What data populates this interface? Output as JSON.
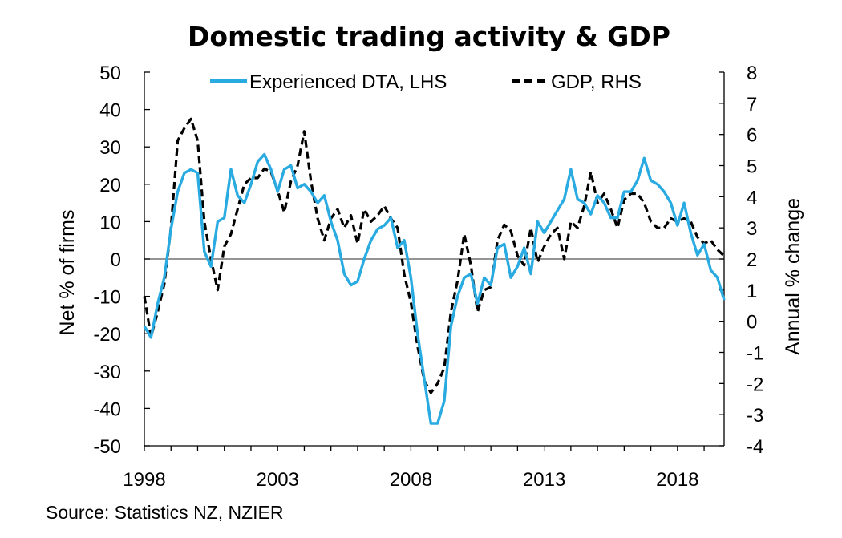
{
  "chart_data": {
    "type": "line",
    "title": "Domestic trading activity & GDP",
    "ylabel_left": "Net % of firms",
    "ylabel_right": "Annual % change",
    "source": "Source: Statistics NZ, NZIER",
    "left_axis": {
      "range": [
        -50,
        50
      ],
      "ticks": [
        "50",
        "40",
        "30",
        "20",
        "10",
        "0",
        "-10",
        "-20",
        "-30",
        "-40",
        "-50"
      ]
    },
    "right_axis": {
      "range": [
        -4,
        8
      ],
      "ticks": [
        "8",
        "7",
        "6",
        "5",
        "4",
        "3",
        "2",
        "1",
        "0",
        "-1",
        "-2",
        "-3",
        "-4"
      ]
    },
    "x_axis": {
      "range": [
        1998,
        2019.75
      ],
      "ticks": [
        "1998",
        "2003",
        "2008",
        "2013",
        "2018"
      ]
    },
    "legend": {
      "position": "top",
      "entries": [
        "Experienced DTA, LHS",
        "GDP, RHS"
      ]
    },
    "colors": {
      "dta": "#29abe2",
      "gdp": "#000000",
      "axis": "#000000",
      "zero": "#555555"
    },
    "series": [
      {
        "name": "Experienced DTA, LHS",
        "axis": "left",
        "style": "solid",
        "x": [
          1998,
          1998.25,
          1998.5,
          1998.75,
          1999,
          1999.25,
          1999.5,
          1999.75,
          2000,
          2000.25,
          2000.5,
          2000.75,
          2001,
          2001.25,
          2001.5,
          2001.75,
          2002,
          2002.25,
          2002.5,
          2002.75,
          2003,
          2003.25,
          2003.5,
          2003.75,
          2004,
          2004.25,
          2004.5,
          2004.75,
          2005,
          2005.25,
          2005.5,
          2005.75,
          2006,
          2006.25,
          2006.5,
          2006.75,
          2007,
          2007.25,
          2007.5,
          2007.75,
          2008,
          2008.25,
          2008.5,
          2008.75,
          2009,
          2009.25,
          2009.5,
          2009.75,
          2010,
          2010.25,
          2010.5,
          2010.75,
          2011,
          2011.25,
          2011.5,
          2011.75,
          2012,
          2012.25,
          2012.5,
          2012.75,
          2013,
          2013.25,
          2013.5,
          2013.75,
          2014,
          2014.25,
          2014.5,
          2014.75,
          2015,
          2015.25,
          2015.5,
          2015.75,
          2016,
          2016.25,
          2016.5,
          2016.75,
          2017,
          2017.25,
          2017.5,
          2017.75,
          2018,
          2018.25,
          2018.5,
          2018.75,
          2019,
          2019.25,
          2019.5,
          2019.75
        ],
        "values": [
          -18,
          -21,
          -12,
          -5,
          8,
          18,
          23,
          24,
          23,
          2,
          -2,
          10,
          11,
          24,
          17,
          15,
          20,
          26,
          28,
          24,
          18,
          24,
          25,
          19,
          20,
          18,
          15,
          17,
          10,
          5,
          -4,
          -7,
          -6,
          0,
          5,
          8,
          9,
          11,
          3,
          5,
          -5,
          -20,
          -32,
          -44,
          -44,
          -38,
          -18,
          -10,
          -5,
          -4,
          -12,
          -5,
          -7,
          3,
          4,
          -5,
          -2,
          3,
          -4,
          10,
          7,
          10,
          13,
          16,
          24,
          16,
          15,
          12,
          17,
          15,
          11,
          11,
          18,
          18,
          21,
          27,
          21,
          20,
          18,
          15,
          9,
          15,
          7,
          1,
          4,
          -3,
          -5,
          -11
        ]
      },
      {
        "name": "GDP, RHS",
        "axis": "right",
        "style": "dashed",
        "x": [
          1998,
          1998.25,
          1998.5,
          1998.75,
          1999,
          1999.25,
          1999.5,
          1999.75,
          2000,
          2000.25,
          2000.5,
          2000.75,
          2001,
          2001.25,
          2001.5,
          2001.75,
          2002,
          2002.25,
          2002.5,
          2002.75,
          2003,
          2003.25,
          2003.5,
          2003.75,
          2004,
          2004.25,
          2004.5,
          2004.75,
          2005,
          2005.25,
          2005.5,
          2005.75,
          2006,
          2006.25,
          2006.5,
          2006.75,
          2007,
          2007.25,
          2007.5,
          2007.75,
          2008,
          2008.25,
          2008.5,
          2008.75,
          2009,
          2009.25,
          2009.5,
          2009.75,
          2010,
          2010.25,
          2010.5,
          2010.75,
          2011,
          2011.25,
          2011.5,
          2011.75,
          2012,
          2012.25,
          2012.5,
          2012.75,
          2013,
          2013.25,
          2013.5,
          2013.75,
          2014,
          2014.25,
          2014.5,
          2014.75,
          2015,
          2015.25,
          2015.5,
          2015.75,
          2016,
          2016.25,
          2016.5,
          2016.75,
          2017,
          2017.25,
          2017.5,
          2017.75,
          2018,
          2018.25,
          2018.5,
          2018.75,
          2019,
          2019.25,
          2019.5,
          2019.75
        ],
        "values": [
          0.8,
          -0.5,
          0.3,
          1.2,
          3.0,
          5.8,
          6.2,
          6.5,
          5.8,
          3.2,
          2.0,
          1.0,
          2.4,
          2.8,
          3.6,
          4.4,
          4.6,
          4.6,
          4.9,
          4.8,
          4.2,
          3.5,
          4.5,
          5.0,
          6.1,
          4.5,
          3.3,
          2.6,
          3.3,
          3.6,
          3.0,
          3.4,
          2.5,
          3.6,
          3.2,
          3.4,
          3.7,
          3.3,
          3.0,
          1.5,
          0.6,
          -0.8,
          -1.9,
          -2.3,
          -2.0,
          -1.5,
          0.3,
          1.3,
          2.8,
          1.8,
          0.3,
          1.0,
          1.1,
          2.6,
          3.1,
          2.9,
          2.1,
          1.8,
          3.0,
          1.9,
          2.4,
          2.8,
          3.0,
          2.0,
          3.2,
          3.0,
          3.7,
          4.8,
          3.8,
          4.1,
          3.6,
          3.0,
          3.9,
          4.1,
          4.1,
          3.8,
          3.2,
          3.0,
          3.0,
          3.3,
          3.2,
          3.3,
          3.2,
          2.7,
          2.5,
          2.6,
          2.3,
          2.1
        ]
      }
    ]
  }
}
